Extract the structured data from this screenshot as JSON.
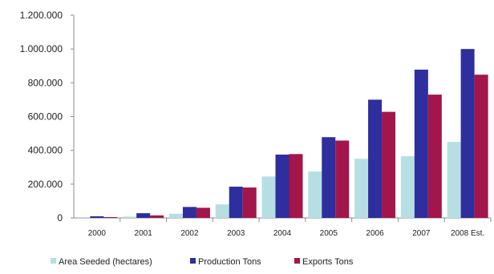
{
  "chart_data": {
    "type": "bar",
    "categories": [
      "2000",
      "2001",
      "2002",
      "2003",
      "2004",
      "2005",
      "2006",
      "2007",
      "2008 Est."
    ],
    "series": [
      {
        "name": "Area Seeded (hectares)",
        "color": "#b7dfe3",
        "values": [
          5000,
          8000,
          25000,
          80000,
          245000,
          275000,
          350000,
          365000,
          450000
        ]
      },
      {
        "name": "Production Tons",
        "color": "#2e2e9e",
        "values": [
          10000,
          28000,
          65000,
          185000,
          375000,
          478000,
          700000,
          878000,
          1000000
        ]
      },
      {
        "name": "Exports Tons",
        "color": "#a3164b",
        "values": [
          5000,
          15000,
          60000,
          180000,
          378000,
          458000,
          628000,
          730000,
          848000
        ]
      }
    ],
    "ylim": [
      0,
      1200000
    ],
    "yticks": [
      "0",
      "200.000",
      "400.000",
      "600.000",
      "800.000",
      "1.000.000",
      "1.200.000"
    ],
    "ytick_values": [
      0,
      200000,
      400000,
      600000,
      800000,
      1000000,
      1200000
    ],
    "legend_position": "bottom-left",
    "grid": false
  }
}
